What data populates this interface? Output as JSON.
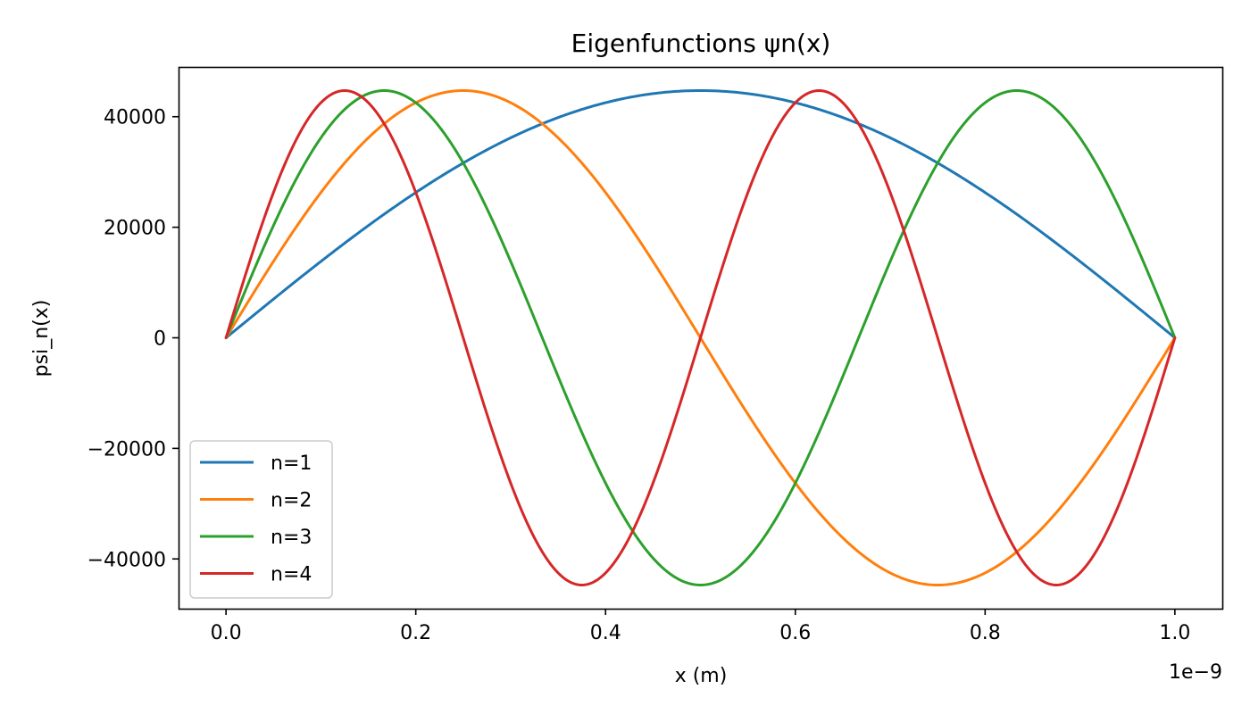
{
  "chart_data": {
    "type": "line",
    "title": "Eigenfunctions ψn(x)",
    "xlabel": "x (m)",
    "ylabel": "psi_n(x)",
    "x_offset_text": "1e−9",
    "x_range": [
      0,
      1.0
    ],
    "x_scale_note": "x values shown in units of 1e-9 m",
    "xlim": [
      -0.05,
      1.05
    ],
    "ylim": [
      -49000,
      49000
    ],
    "x_ticks": [
      0.0,
      0.2,
      0.4,
      0.6,
      0.8,
      1.0
    ],
    "x_tick_labels": [
      "0.0",
      "0.2",
      "0.4",
      "0.6",
      "0.8",
      "1.0"
    ],
    "y_ticks": [
      40000,
      20000,
      0,
      -20000,
      -40000
    ],
    "y_tick_labels": [
      "40000",
      "20000",
      "0",
      "−20000",
      "−40000"
    ],
    "amplitude": 44721,
    "grid": false,
    "legend_position": "lower-left",
    "series": [
      {
        "name": "n=1",
        "n": 1,
        "color": "#1f77b4"
      },
      {
        "name": "n=2",
        "n": 2,
        "color": "#ff7f0e"
      },
      {
        "name": "n=3",
        "n": 3,
        "color": "#2ca02c"
      },
      {
        "name": "n=4",
        "n": 4,
        "color": "#d62728"
      }
    ]
  }
}
